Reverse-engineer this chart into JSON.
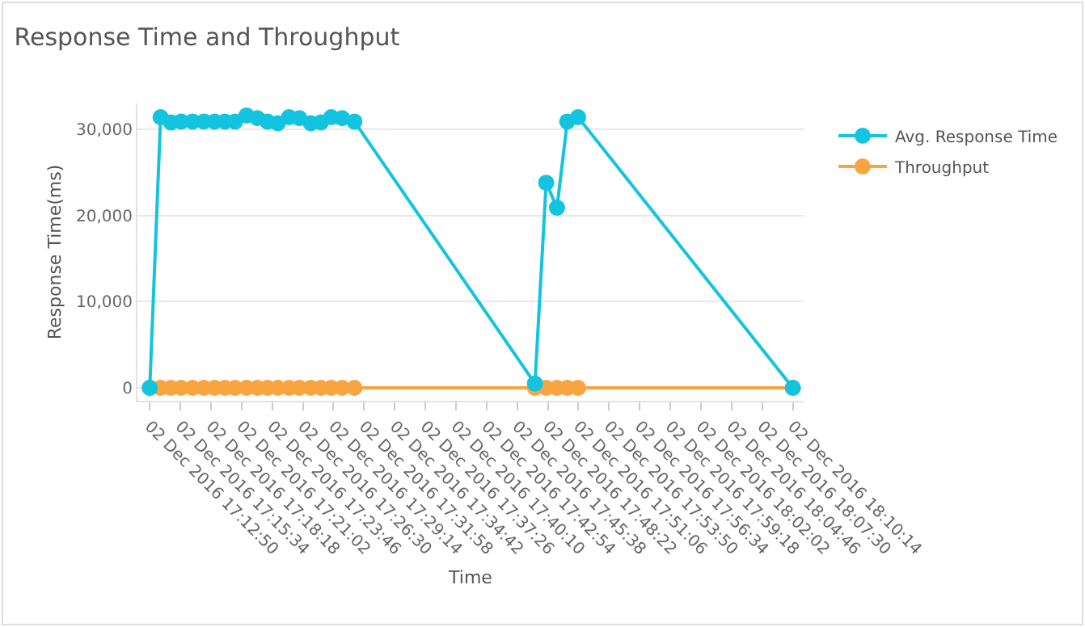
{
  "chart_data": {
    "type": "line",
    "title": "Response Time and Throughput",
    "xlabel": "Time",
    "ylabel": "Response Time(ms)",
    "x": [
      "2016-12-02T17:12:50",
      "2016-12-02T17:13:48",
      "2016-12-02T17:14:43",
      "2016-12-02T17:15:38",
      "2016-12-02T17:16:39",
      "2016-12-02T17:17:39",
      "2016-12-02T17:18:37",
      "2016-12-02T17:19:32",
      "2016-12-02T17:20:27",
      "2016-12-02T17:21:28",
      "2016-12-02T17:22:26",
      "2016-12-02T17:23:20",
      "2016-12-02T17:24:16",
      "2016-12-02T17:25:16",
      "2016-12-02T17:26:11",
      "2016-12-02T17:27:12",
      "2016-12-02T17:28:07",
      "2016-12-02T17:29:02",
      "2016-12-02T17:30:00",
      "2016-12-02T17:31:06",
      "2016-12-02T17:47:13",
      "2016-12-02T17:48:13",
      "2016-12-02T17:49:11",
      "2016-12-02T17:50:06",
      "2016-12-02T17:51:04",
      "2016-12-02T18:10:14"
    ],
    "series": [
      {
        "name": "Avg. Response Time",
        "color": "#13c4e0",
        "values": [
          0,
          31400,
          30800,
          30900,
          30900,
          30900,
          30900,
          30900,
          30900,
          31600,
          31300,
          30900,
          30700,
          31400,
          31300,
          30700,
          30800,
          31400,
          31300,
          30900,
          500,
          23800,
          20900,
          30900,
          31400,
          0
        ]
      },
      {
        "name": "Throughput",
        "color": "#f9a53f",
        "values": [
          0,
          0,
          0,
          0,
          0,
          0,
          0,
          0,
          0,
          0,
          0,
          0,
          0,
          0,
          0,
          0,
          0,
          0,
          0,
          0,
          0,
          0,
          0,
          0,
          0,
          0
        ]
      }
    ],
    "xlim": [
      "2016-12-02T17:11:44",
      "2016-12-02T18:11:12"
    ],
    "xticks": [
      {
        "value": "2016-12-02T17:12:50",
        "label": "02 Dec 2016 17:12:50"
      },
      {
        "value": "2016-12-02T17:15:34",
        "label": "02 Dec 2016 17:15:34"
      },
      {
        "value": "2016-12-02T17:18:18",
        "label": "02 Dec 2016 17:18:18"
      },
      {
        "value": "2016-12-02T17:21:02",
        "label": "02 Dec 2016 17:21:02"
      },
      {
        "value": "2016-12-02T17:23:46",
        "label": "02 Dec 2016 17:23:46"
      },
      {
        "value": "2016-12-02T17:26:30",
        "label": "02 Dec 2016 17:26:30"
      },
      {
        "value": "2016-12-02T17:29:14",
        "label": "02 Dec 2016 17:29:14"
      },
      {
        "value": "2016-12-02T17:31:58",
        "label": "02 Dec 2016 17:31:58"
      },
      {
        "value": "2016-12-02T17:34:42",
        "label": "02 Dec 2016 17:34:42"
      },
      {
        "value": "2016-12-02T17:37:26",
        "label": "02 Dec 2016 17:37:26"
      },
      {
        "value": "2016-12-02T17:40:10",
        "label": "02 Dec 2016 17:40:10"
      },
      {
        "value": "2016-12-02T17:42:54",
        "label": "02 Dec 2016 17:42:54"
      },
      {
        "value": "2016-12-02T17:45:38",
        "label": "02 Dec 2016 17:45:38"
      },
      {
        "value": "2016-12-02T17:48:22",
        "label": "02 Dec 2016 17:48:22"
      },
      {
        "value": "2016-12-02T17:51:06",
        "label": "02 Dec 2016 17:51:06"
      },
      {
        "value": "2016-12-02T17:53:50",
        "label": "02 Dec 2016 17:53:50"
      },
      {
        "value": "2016-12-02T17:56:34",
        "label": "02 Dec 2016 17:56:34"
      },
      {
        "value": "2016-12-02T17:59:18",
        "label": "02 Dec 2016 17:59:18"
      },
      {
        "value": "2016-12-02T18:02:02",
        "label": "02 Dec 2016 18:02:02"
      },
      {
        "value": "2016-12-02T18:04:46",
        "label": "02 Dec 2016 18:04:46"
      },
      {
        "value": "2016-12-02T18:07:30",
        "label": "02 Dec 2016 18:07:30"
      },
      {
        "value": "2016-12-02T18:10:14",
        "label": "02 Dec 2016 18:10:14"
      }
    ],
    "ylim": [
      -1500,
      33000
    ],
    "yticks": [
      0,
      {
        "value": 10000,
        "label": "10,000"
      },
      {
        "value": 20000,
        "label": "20,000"
      },
      {
        "value": 30000,
        "label": "30,000"
      }
    ],
    "grid": "y",
    "legend": "right",
    "marker": "circle",
    "line_style": "solid"
  }
}
